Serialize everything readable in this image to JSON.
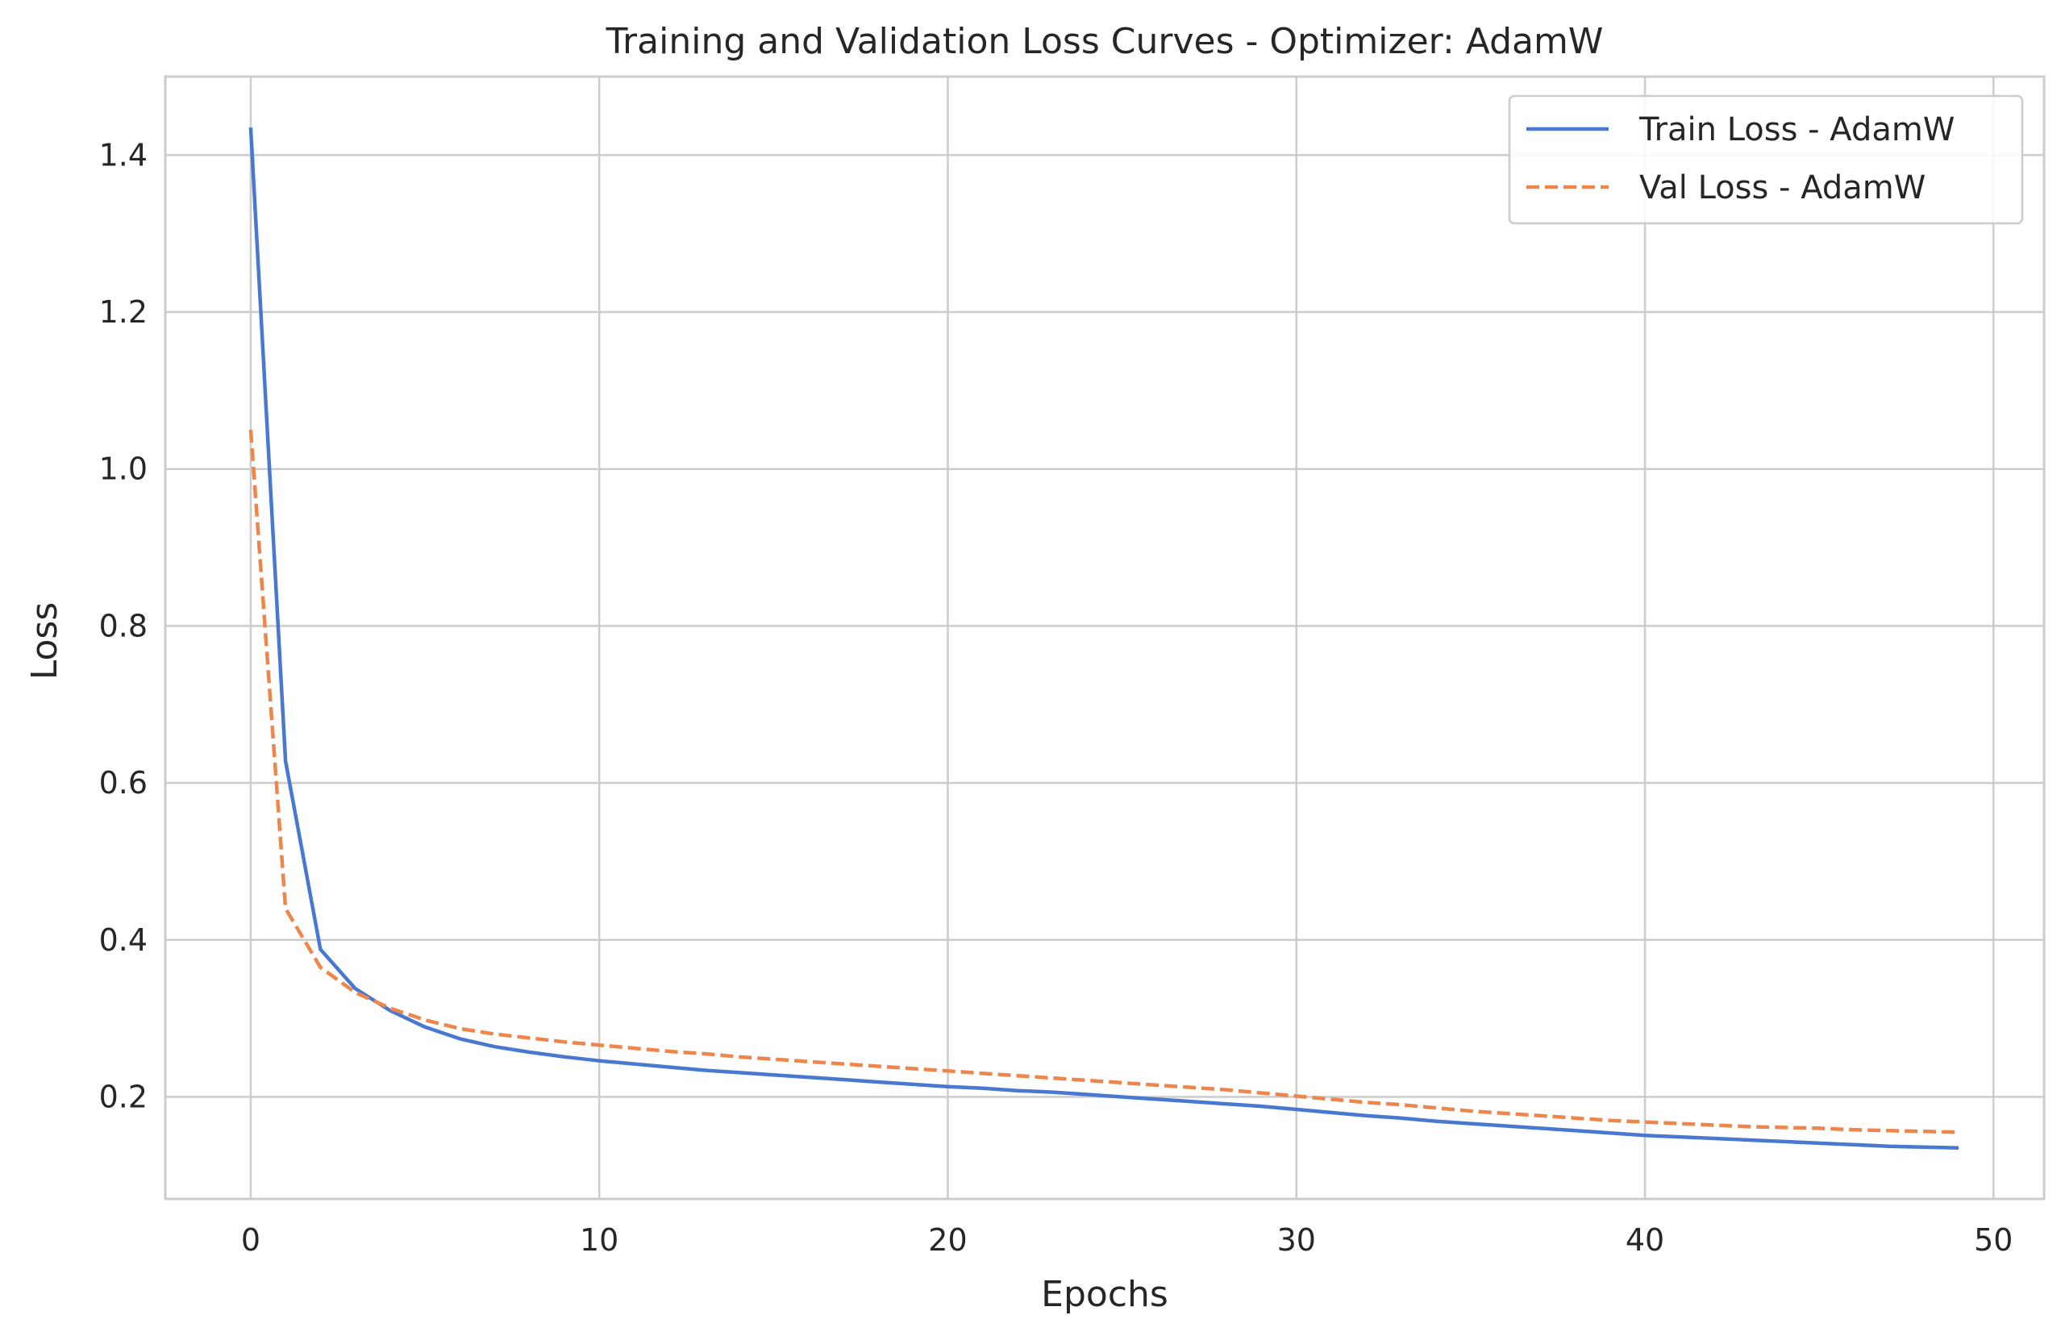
{
  "chart_data": {
    "type": "line",
    "title": "Training and Validation Loss Curves - Optimizer: AdamW",
    "xlabel": "Epochs",
    "ylabel": "Loss",
    "xlim": [
      -2.45,
      51.45
    ],
    "ylim": [
      0.07,
      1.5
    ],
    "xticks": [
      0,
      10,
      20,
      30,
      40,
      50
    ],
    "yticks": [
      0.2,
      0.4,
      0.6,
      0.8,
      1.0,
      1.2,
      1.4
    ],
    "xtick_labels": [
      "0",
      "10",
      "20",
      "30",
      "40",
      "50"
    ],
    "ytick_labels": [
      "0.2",
      "0.4",
      "0.6",
      "0.8",
      "1.0",
      "1.2",
      "1.4"
    ],
    "grid": true,
    "legend_position": "top-right",
    "x": [
      0,
      1,
      2,
      3,
      4,
      5,
      6,
      7,
      8,
      9,
      10,
      11,
      12,
      13,
      14,
      15,
      16,
      17,
      18,
      19,
      20,
      21,
      22,
      23,
      24,
      25,
      26,
      27,
      28,
      29,
      30,
      31,
      32,
      33,
      34,
      35,
      36,
      37,
      38,
      39,
      40,
      41,
      42,
      43,
      44,
      45,
      46,
      47,
      48,
      49
    ],
    "series": [
      {
        "name": "Train Loss - AdamW",
        "color": "#4878d0",
        "dash": "solid",
        "values": [
          1.435,
          0.628,
          0.388,
          0.338,
          0.31,
          0.289,
          0.274,
          0.264,
          0.257,
          0.251,
          0.246,
          0.242,
          0.238,
          0.234,
          0.231,
          0.228,
          0.225,
          0.222,
          0.219,
          0.216,
          0.213,
          0.211,
          0.208,
          0.206,
          0.203,
          0.2,
          0.197,
          0.194,
          0.191,
          0.188,
          0.184,
          0.18,
          0.176,
          0.173,
          0.169,
          0.166,
          0.163,
          0.16,
          0.157,
          0.154,
          0.151,
          0.149,
          0.147,
          0.145,
          0.143,
          0.141,
          0.139,
          0.137,
          0.136,
          0.135
        ]
      },
      {
        "name": "Val Loss - AdamW",
        "color": "#ee854a",
        "dash": "dashed",
        "values": [
          1.05,
          0.44,
          0.365,
          0.333,
          0.313,
          0.298,
          0.287,
          0.28,
          0.275,
          0.27,
          0.266,
          0.262,
          0.258,
          0.255,
          0.251,
          0.248,
          0.245,
          0.242,
          0.239,
          0.236,
          0.233,
          0.23,
          0.227,
          0.224,
          0.221,
          0.218,
          0.215,
          0.212,
          0.209,
          0.205,
          0.201,
          0.197,
          0.193,
          0.19,
          0.186,
          0.182,
          0.179,
          0.176,
          0.173,
          0.17,
          0.168,
          0.166,
          0.164,
          0.162,
          0.161,
          0.16,
          0.158,
          0.157,
          0.156,
          0.155
        ]
      }
    ]
  }
}
